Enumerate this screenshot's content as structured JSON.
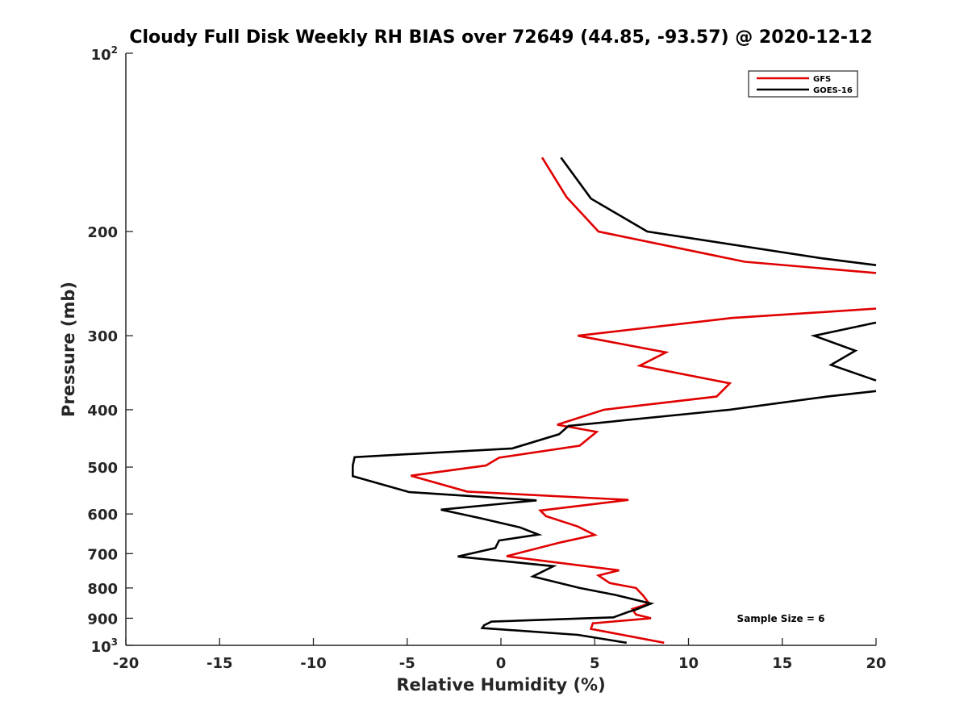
{
  "chart_data": {
    "type": "line",
    "title": "Cloudy Full Disk Weekly RH BIAS over 72649 (44.85, -93.57) @ 2020-12-12",
    "xlabel": "Relative Humidity (%)",
    "ylabel": "Pressure (mb)",
    "xlim": [
      -20,
      20
    ],
    "ylim": [
      100,
      1000
    ],
    "yscale": "log",
    "y_reversed": true,
    "grid": false,
    "legend_position": "top-right",
    "x_ticks": [
      -20,
      -15,
      -10,
      -5,
      0,
      5,
      10,
      15,
      20
    ],
    "x_tick_labels": [
      "-20",
      "-15",
      "-10",
      "-5",
      "0",
      "5",
      "10",
      "15",
      "20"
    ],
    "y_ticks": [
      200,
      300,
      400,
      500,
      600,
      700,
      800,
      900
    ],
    "y_tick_labels": [
      "200",
      "300",
      "400",
      "500",
      "600",
      "700",
      "800",
      "900"
    ],
    "y_end_labels": [
      {
        "value": 100,
        "base": "10",
        "exp": "2"
      },
      {
        "value": 1000,
        "base": "10",
        "exp": "3"
      }
    ],
    "annotation": "Sample Size = 6",
    "series": [
      {
        "name": "GFS",
        "color": "#e00000",
        "points": [
          [
            2.2,
            150
          ],
          [
            3.5,
            175
          ],
          [
            5.2,
            200
          ],
          [
            13.0,
            225
          ],
          [
            20.0,
            235
          ],
          [
            null,
            null
          ],
          [
            20.0,
            270
          ],
          [
            12.3,
            280
          ],
          [
            4.1,
            300
          ],
          [
            8.8,
            320
          ],
          [
            7.4,
            337
          ],
          [
            12.2,
            361
          ],
          [
            11.5,
            380
          ],
          [
            5.5,
            400
          ],
          [
            3.0,
            424
          ],
          [
            5.1,
            436
          ],
          [
            4.2,
            460
          ],
          [
            -0.1,
            482
          ],
          [
            -0.8,
            497
          ],
          [
            -4.8,
            517
          ],
          [
            -1.8,
            550
          ],
          [
            6.8,
            568
          ],
          [
            2.1,
            592
          ],
          [
            2.4,
            605
          ],
          [
            4.1,
            630
          ],
          [
            5.0,
            651
          ],
          [
            3.2,
            670
          ],
          [
            0.3,
            707
          ],
          [
            6.3,
            747
          ],
          [
            5.2,
            762
          ],
          [
            5.8,
            785
          ],
          [
            7.2,
            800
          ],
          [
            7.6,
            825
          ],
          [
            7.9,
            850
          ],
          [
            7.0,
            868
          ],
          [
            7.2,
            887
          ],
          [
            8.0,
            900
          ],
          [
            4.9,
            918
          ],
          [
            4.8,
            938
          ],
          [
            8.7,
            990
          ]
        ]
      },
      {
        "name": "GOES-16",
        "color": "#000000",
        "points": [
          [
            3.2,
            150
          ],
          [
            4.8,
            176
          ],
          [
            7.8,
            200
          ],
          [
            17.1,
            222
          ],
          [
            20.0,
            228
          ],
          [
            null,
            null
          ],
          [
            20.0,
            285
          ],
          [
            16.7,
            300
          ],
          [
            18.9,
            318
          ],
          [
            17.6,
            336
          ],
          [
            20.0,
            357
          ],
          [
            null,
            null
          ],
          [
            20.0,
            372
          ],
          [
            17.4,
            380
          ],
          [
            12.2,
            400
          ],
          [
            3.6,
            426
          ],
          [
            3.1,
            440
          ],
          [
            0.6,
            465
          ],
          [
            -7.8,
            481
          ],
          [
            -7.9,
            497
          ],
          [
            -7.9,
            518
          ],
          [
            -4.9,
            551
          ],
          [
            1.9,
            569
          ],
          [
            -3.2,
            590
          ],
          [
            -1.1,
            610
          ],
          [
            1.0,
            632
          ],
          [
            2.0,
            650
          ],
          [
            -0.1,
            665
          ],
          [
            -0.3,
            685
          ],
          [
            -2.3,
            708
          ],
          [
            2.8,
            735
          ],
          [
            1.7,
            765
          ],
          [
            4.2,
            800
          ],
          [
            6.1,
            822
          ],
          [
            8.0,
            850
          ],
          [
            7.2,
            870
          ],
          [
            6.8,
            878
          ],
          [
            6.0,
            897
          ],
          [
            -0.5,
            912
          ],
          [
            -0.9,
            925
          ],
          [
            -1.0,
            935
          ],
          [
            4.1,
            960
          ],
          [
            6.7,
            990
          ]
        ]
      }
    ]
  }
}
